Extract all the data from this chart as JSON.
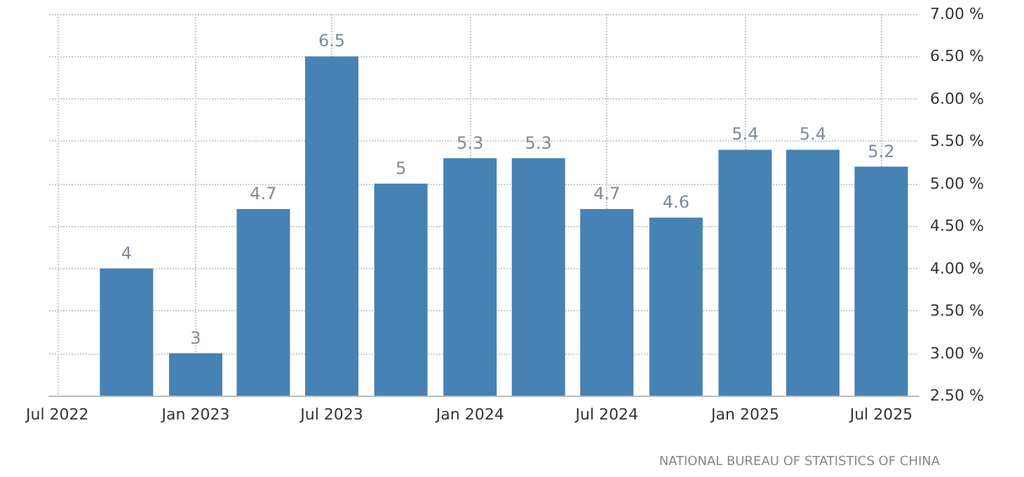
{
  "chart_data": {
    "type": "bar",
    "x": [
      "2022-10",
      "2023-01",
      "2023-04",
      "2023-07",
      "2023-10",
      "2024-01",
      "2024-04",
      "2024-07",
      "2024-10",
      "2025-01",
      "2025-04",
      "2025-07"
    ],
    "values": [
      4,
      3,
      4.7,
      6.5,
      5,
      5.3,
      5.3,
      4.7,
      4.6,
      5.4,
      5.4,
      5.2
    ],
    "color": "#4682b4",
    "data_labels": true,
    "xlim": [
      "2022-06-20",
      "2025-08-20"
    ],
    "xticks": [
      {
        "value": "2022-07",
        "label": "Jul 2022"
      },
      {
        "value": "2023-01",
        "label": "Jan 2023"
      },
      {
        "value": "2023-07",
        "label": "Jul 2023"
      },
      {
        "value": "2024-01",
        "label": "Jan 2024"
      },
      {
        "value": "2024-07",
        "label": "Jul 2024"
      },
      {
        "value": "2025-01",
        "label": "Jan 2025"
      },
      {
        "value": "2025-07",
        "label": "Jul 2025"
      }
    ],
    "ylim": [
      2.5,
      7
    ],
    "yticks": [
      {
        "value": 2.5,
        "label": "2.50 %"
      },
      {
        "value": 3,
        "label": "3.00 %"
      },
      {
        "value": 3.5,
        "label": "3.50 %"
      },
      {
        "value": 4,
        "label": "4.00 %"
      },
      {
        "value": 4.5,
        "label": "4.50 %"
      },
      {
        "value": 5,
        "label": "5.00 %"
      },
      {
        "value": 5.5,
        "label": "5.50 %"
      },
      {
        "value": 6,
        "label": "6.00 %"
      },
      {
        "value": 6.5,
        "label": "6.50 %"
      },
      {
        "value": 7,
        "label": "7.00 %"
      }
    ],
    "grid": true,
    "annotations": [
      "NATIONAL BUREAU OF STATISTICS OF CHINA"
    ]
  }
}
